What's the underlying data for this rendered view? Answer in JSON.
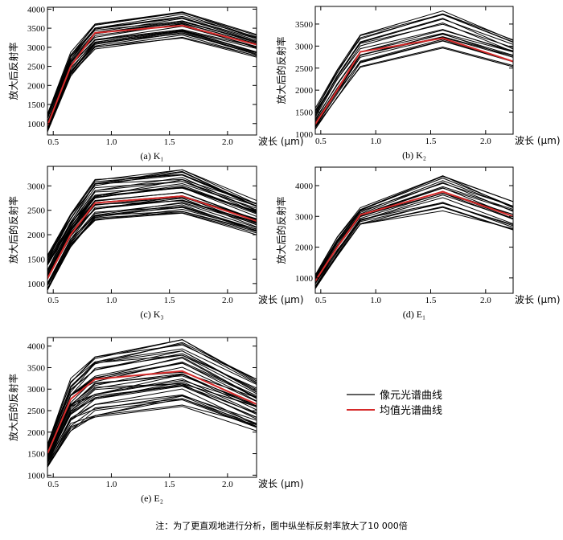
{
  "legend": {
    "pixel_label": "像元光谱曲线",
    "mean_label": "均值光谱曲线",
    "pixel_color": "#000000",
    "mean_color": "#d62a2a"
  },
  "note": "注：为了更直观地进行分析，图中纵坐标反射率放大了10 000倍",
  "chart_data": [
    {
      "type": "line",
      "caption": "(a) K₁",
      "ylabel": "放大后反射率",
      "xlabel": "波长 (μm)",
      "xlim": [
        0.45,
        2.25
      ],
      "ylim": [
        700,
        4050
      ],
      "xticks": [
        0.5,
        1.0,
        1.5,
        2.0
      ],
      "yticks": [
        1000,
        1500,
        2000,
        2500,
        3000,
        3500,
        4000
      ],
      "x": [
        0.45,
        0.65,
        0.86,
        1.61,
        2.25
      ],
      "mean": [
        950,
        2500,
        3380,
        3570,
        3070
      ],
      "pixel_curves": {
        "count": 26,
        "low": [
          780,
          2230,
          2950,
          3240,
          2740
        ],
        "high": [
          1260,
          2870,
          3640,
          3930,
          3340
        ]
      }
    },
    {
      "type": "line",
      "caption": "(b) K₂",
      "ylabel": "放大后的反射率",
      "xlabel": "波长 (μm)",
      "xlim": [
        0.45,
        2.25
      ],
      "ylim": [
        1000,
        3900
      ],
      "xticks": [
        0.5,
        1.0,
        1.5,
        2.0
      ],
      "yticks": [
        1000,
        1500,
        2000,
        2500,
        3000,
        3500
      ],
      "x": [
        0.45,
        0.65,
        0.86,
        1.61,
        2.25
      ],
      "mean": [
        1230,
        2000,
        2870,
        3180,
        2650
      ],
      "pixel_curves": {
        "count": 20,
        "low": [
          1100,
          1780,
          2520,
          2950,
          2530
        ],
        "high": [
          1600,
          2500,
          3250,
          3800,
          3150
        ]
      }
    },
    {
      "type": "line",
      "caption": "(c) K₃",
      "ylabel": "放大后的反射率",
      "xlabel": "波长 (μm)",
      "xlim": [
        0.45,
        2.25
      ],
      "ylim": [
        800,
        3400
      ],
      "xticks": [
        0.5,
        1.0,
        1.5,
        2.0
      ],
      "yticks": [
        1000,
        1500,
        2000,
        2500,
        3000
      ],
      "x": [
        0.45,
        0.65,
        0.86,
        1.61,
        2.25
      ],
      "mean": [
        1100,
        2000,
        2650,
        2790,
        2280
      ],
      "pixel_curves": {
        "count": 40,
        "low": [
          850,
          1750,
          2230,
          2440,
          2000
        ],
        "high": [
          1580,
          2420,
          3130,
          3330,
          2700
        ]
      }
    },
    {
      "type": "line",
      "caption": "(d) E₁",
      "ylabel": "放大后的反射率",
      "xlabel": "波长 (μm)",
      "xlim": [
        0.45,
        2.25
      ],
      "ylim": [
        500,
        4600
      ],
      "xticks": [
        0.5,
        1.0,
        1.5,
        2.0
      ],
      "yticks": [
        1000,
        2000,
        3000,
        4000
      ],
      "x": [
        0.45,
        0.65,
        0.86,
        1.61,
        2.25
      ],
      "mean": [
        900,
        2000,
        3050,
        3800,
        3000
      ],
      "pixel_curves": {
        "count": 22,
        "low": [
          650,
          1650,
          2730,
          3180,
          2550
        ],
        "high": [
          1130,
          2350,
          3280,
          4420,
          3480
        ]
      }
    },
    {
      "type": "line",
      "caption": "(e) E₂",
      "ylabel": "放大后的反射率",
      "xlabel": "波长 (μm)",
      "xlim": [
        0.45,
        2.25
      ],
      "ylim": [
        950,
        4200
      ],
      "xticks": [
        0.5,
        1.0,
        1.5,
        2.0
      ],
      "yticks": [
        1000,
        1500,
        2000,
        2500,
        3000,
        3500,
        4000
      ],
      "x": [
        0.45,
        0.65,
        0.86,
        1.61,
        2.25
      ],
      "mean": [
        1500,
        2770,
        3230,
        3420,
        2650
      ],
      "pixel_curves": {
        "count": 40,
        "low": [
          1180,
          2030,
          2350,
          2600,
          2030
        ],
        "high": [
          1710,
          3250,
          3750,
          4150,
          3250
        ]
      }
    }
  ]
}
